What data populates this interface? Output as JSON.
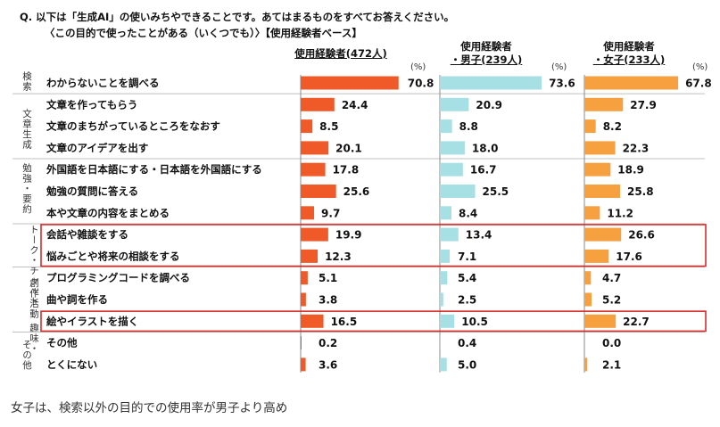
{
  "question": {
    "line1": "Q. 以下は「生成AI」の使いみちやできることです。あてはまるものをすべてお答えください。",
    "line2": "〈この目的で使ったことがある（いくつでも）〉【使用経験者ベース】"
  },
  "percent_unit": "(%)",
  "columns": [
    {
      "line1": "",
      "line2": "使用経験者(472人)"
    },
    {
      "line1": "使用経験者",
      "line2": "・男子(239人)"
    },
    {
      "line1": "使用経験者",
      "line2": "・女子(233人)"
    }
  ],
  "groups": [
    {
      "label": "検索"
    },
    {
      "label": "文章生成"
    },
    {
      "label": "勉強・要約"
    },
    {
      "label": "トーク・チャット"
    },
    {
      "label": "創作活動 趣味・"
    },
    {
      "label": "その他"
    }
  ],
  "caption": "女子は、検索以外の目的での使用率が男子より高め",
  "colors": {
    "all": "#f05a28",
    "male": "#a6e0e4",
    "female": "#f7a040",
    "highlight": "#d92b2b",
    "separator": "#c0c0c0"
  },
  "chart_data": {
    "type": "bar",
    "orientation": "horizontal",
    "categories": [
      "わからないことを調べる",
      "文章を作ってもらう",
      "文章のまちがっているところをなおす",
      "文章のアイデアを出す",
      "外国語を日本語にする・日本語を外国語にする",
      "勉強の質問に答える",
      "本や文章の内容をまとめる",
      "会話や雑談をする",
      "悩みごとや将来の相談をする",
      "プログラミングコードを調べる",
      "曲や詞を作る",
      "絵やイラストを描く",
      "その他",
      "とくにない"
    ],
    "series": [
      {
        "name": "使用経験者(472人)",
        "values": [
          70.8,
          24.4,
          8.5,
          20.1,
          17.8,
          25.6,
          9.7,
          19.9,
          12.3,
          5.1,
          3.8,
          16.5,
          0.2,
          3.6
        ]
      },
      {
        "name": "使用経験者・男子(239人)",
        "values": [
          73.6,
          20.9,
          8.8,
          18.0,
          16.7,
          25.5,
          8.4,
          13.4,
          7.1,
          5.4,
          2.5,
          10.5,
          0.4,
          5.0
        ]
      },
      {
        "name": "使用経験者・女子(233人)",
        "values": [
          67.8,
          27.9,
          8.2,
          22.3,
          18.9,
          25.8,
          11.2,
          26.6,
          17.6,
          4.7,
          5.2,
          22.7,
          0.0,
          2.1
        ]
      }
    ],
    "unit": "%",
    "xlim": [
      0,
      100
    ],
    "highlighted_categories": [
      "会話や雑談をする",
      "悩みごとや将来の相談をする",
      "絵やイラストを描く"
    ]
  }
}
